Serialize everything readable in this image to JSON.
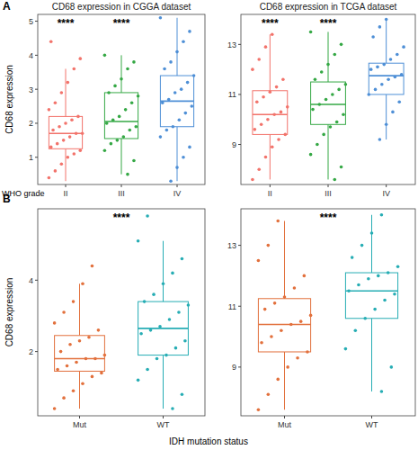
{
  "chart_data": [
    {
      "type": "box",
      "panel": "A",
      "title": "CD68 expression in CGGA dataset",
      "y_label": "CD68 expression",
      "x_label": "WHO grade",
      "categories": [
        "II",
        "III",
        "IV"
      ],
      "colors": [
        "#f2736b",
        "#35a845",
        "#4e8fd6"
      ],
      "ylim": [
        0.2,
        5.2
      ],
      "yticks": [
        1,
        2,
        3,
        4,
        5
      ],
      "boxes": [
        {
          "min": 0.3,
          "q1": 1.25,
          "median": 1.7,
          "q3": 2.2,
          "max": 3.6
        },
        {
          "min": 0.5,
          "q1": 1.55,
          "median": 2.05,
          "q3": 2.9,
          "max": 4.0
        },
        {
          "min": 0.3,
          "q1": 1.9,
          "median": 2.65,
          "q3": 3.4,
          "max": 5.1
        }
      ],
      "points": [
        [
          0.4,
          0.6,
          0.8,
          1.0,
          1.1,
          1.2,
          1.3,
          1.4,
          1.5,
          1.6,
          1.7,
          1.7,
          1.8,
          1.9,
          2.0,
          2.1,
          2.2,
          2.4,
          2.6,
          2.9,
          3.2,
          3.6,
          3.9,
          4.4
        ],
        [
          0.5,
          0.9,
          1.2,
          1.4,
          1.5,
          1.6,
          1.8,
          1.9,
          2.0,
          2.1,
          2.2,
          2.4,
          2.6,
          2.8,
          2.9,
          3.1,
          3.3,
          3.6,
          3.8,
          4.0
        ],
        [
          0.3,
          0.7,
          1.0,
          1.3,
          1.6,
          1.8,
          1.9,
          2.1,
          2.3,
          2.5,
          2.6,
          2.7,
          2.9,
          3.0,
          3.2,
          3.4,
          3.6,
          3.8,
          4.1,
          4.4,
          4.7,
          5.1
        ]
      ],
      "annotations": [
        {
          "text": "****",
          "x": 0
        },
        {
          "text": "****",
          "x": 1
        }
      ]
    },
    {
      "type": "box",
      "title": "CD68 expression in TCGA dataset",
      "categories": [
        "II",
        "III",
        "IV"
      ],
      "colors": [
        "#f2736b",
        "#35a845",
        "#4e8fd6"
      ],
      "ylim": [
        7.4,
        14.2
      ],
      "yticks": [
        9,
        11,
        13
      ],
      "boxes": [
        {
          "min": 7.6,
          "q1": 9.4,
          "median": 10.2,
          "q3": 11.15,
          "max": 13.4
        },
        {
          "min": 7.6,
          "q1": 9.8,
          "median": 10.6,
          "q3": 11.5,
          "max": 13.5
        },
        {
          "min": 9.2,
          "q1": 11.0,
          "median": 11.75,
          "q3": 12.25,
          "max": 14.0
        }
      ],
      "points": [
        [
          7.6,
          8.0,
          8.5,
          8.9,
          9.2,
          9.4,
          9.6,
          9.8,
          10.0,
          10.2,
          10.3,
          10.5,
          10.7,
          10.9,
          11.1,
          11.3,
          11.6,
          12.0,
          12.4,
          12.9,
          13.4
        ],
        [
          7.6,
          8.1,
          8.6,
          9.0,
          9.4,
          9.7,
          9.9,
          10.2,
          10.4,
          10.6,
          10.8,
          11.0,
          11.2,
          11.4,
          11.6,
          11.9,
          12.2,
          12.6,
          13.0,
          13.5
        ],
        [
          9.2,
          9.8,
          10.3,
          10.7,
          11.0,
          11.2,
          11.4,
          11.6,
          11.7,
          11.8,
          12.0,
          12.1,
          12.2,
          12.4,
          12.6,
          12.9,
          13.3,
          13.7,
          14.0
        ]
      ],
      "annotations": [
        {
          "text": "****",
          "x": 0
        },
        {
          "text": "****",
          "x": 1
        }
      ]
    },
    {
      "type": "box",
      "panel": "B",
      "y_label": "CD68 expression",
      "x_label": "IDH mutation status",
      "categories": [
        "Mut",
        "WT"
      ],
      "colors": [
        "#e2703c",
        "#26adb4"
      ],
      "ylim": [
        0.2,
        6.0
      ],
      "yticks": [
        2,
        4
      ],
      "boxes": [
        {
          "min": 0.4,
          "q1": 1.45,
          "median": 1.8,
          "q3": 2.45,
          "max": 3.9
        },
        {
          "min": 0.4,
          "q1": 1.9,
          "median": 2.65,
          "q3": 3.4,
          "max": 5.1
        }
      ],
      "points": [
        [
          0.4,
          0.7,
          0.9,
          1.1,
          1.3,
          1.4,
          1.5,
          1.6,
          1.7,
          1.8,
          1.8,
          1.9,
          2.0,
          2.2,
          2.3,
          2.4,
          2.6,
          2.8,
          3.1,
          3.4,
          3.9,
          4.4
        ],
        [
          0.4,
          0.8,
          1.2,
          1.5,
          1.8,
          1.9,
          2.1,
          2.3,
          2.5,
          2.6,
          2.7,
          2.9,
          3.1,
          3.3,
          3.4,
          3.6,
          3.9,
          4.2,
          4.6,
          5.1,
          5.8
        ]
      ],
      "annotations": [
        {
          "text": "****",
          "x": 0.5
        }
      ]
    },
    {
      "type": "box",
      "categories": [
        "Mut",
        "WT"
      ],
      "colors": [
        "#e2703c",
        "#26adb4"
      ],
      "ylim": [
        7.4,
        14.2
      ],
      "yticks": [
        9,
        11,
        13
      ],
      "boxes": [
        {
          "min": 7.6,
          "q1": 9.5,
          "median": 10.4,
          "q3": 11.25,
          "max": 13.8
        },
        {
          "min": 8.2,
          "q1": 10.6,
          "median": 11.5,
          "q3": 12.1,
          "max": 14.0
        }
      ],
      "points": [
        [
          7.6,
          8.1,
          8.6,
          9.0,
          9.3,
          9.5,
          9.8,
          10.0,
          10.2,
          10.4,
          10.5,
          10.7,
          10.9,
          11.1,
          11.3,
          11.6,
          12.0,
          12.5,
          13.0,
          13.8
        ],
        [
          8.2,
          9.0,
          9.6,
          10.2,
          10.6,
          10.9,
          11.2,
          11.4,
          11.5,
          11.7,
          11.9,
          12.0,
          12.1,
          12.3,
          12.6,
          13.0,
          13.4,
          14.0
        ]
      ],
      "annotations": [
        {
          "text": "****",
          "x": 0.5
        }
      ]
    }
  ]
}
